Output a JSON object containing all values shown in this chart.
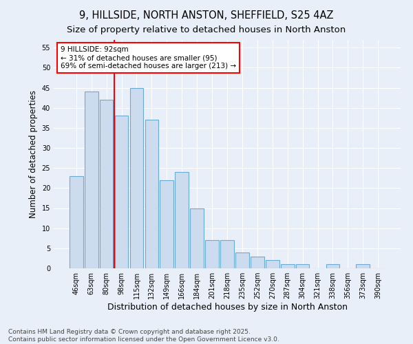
{
  "title": "9, HILLSIDE, NORTH ANSTON, SHEFFIELD, S25 4AZ",
  "subtitle": "Size of property relative to detached houses in North Anston",
  "xlabel": "Distribution of detached houses by size in North Anston",
  "ylabel": "Number of detached properties",
  "categories": [
    "46sqm",
    "63sqm",
    "80sqm",
    "98sqm",
    "115sqm",
    "132sqm",
    "149sqm",
    "166sqm",
    "184sqm",
    "201sqm",
    "218sqm",
    "235sqm",
    "252sqm",
    "270sqm",
    "287sqm",
    "304sqm",
    "321sqm",
    "338sqm",
    "356sqm",
    "373sqm",
    "390sqm"
  ],
  "values": [
    23,
    44,
    42,
    38,
    45,
    37,
    22,
    24,
    15,
    7,
    7,
    4,
    3,
    2,
    1,
    1,
    0,
    1,
    0,
    1,
    0
  ],
  "bar_color": "#ccdcee",
  "bar_edge_color": "#6aaad4",
  "bg_color": "#e8eff8",
  "vline_x": 2.5,
  "vline_color": "red",
  "annotation_text": "9 HILLSIDE: 92sqm\n← 31% of detached houses are smaller (95)\n69% of semi-detached houses are larger (213) →",
  "annotation_box_color": "white",
  "annotation_box_edge": "red",
  "ylim": [
    0,
    57
  ],
  "yticks": [
    0,
    5,
    10,
    15,
    20,
    25,
    30,
    35,
    40,
    45,
    50,
    55
  ],
  "footer": "Contains HM Land Registry data © Crown copyright and database right 2025.\nContains public sector information licensed under the Open Government Licence v3.0.",
  "title_fontsize": 10.5,
  "subtitle_fontsize": 9.5,
  "xlabel_fontsize": 9,
  "ylabel_fontsize": 8.5,
  "tick_fontsize": 7,
  "annotation_fontsize": 7.5,
  "footer_fontsize": 6.5
}
